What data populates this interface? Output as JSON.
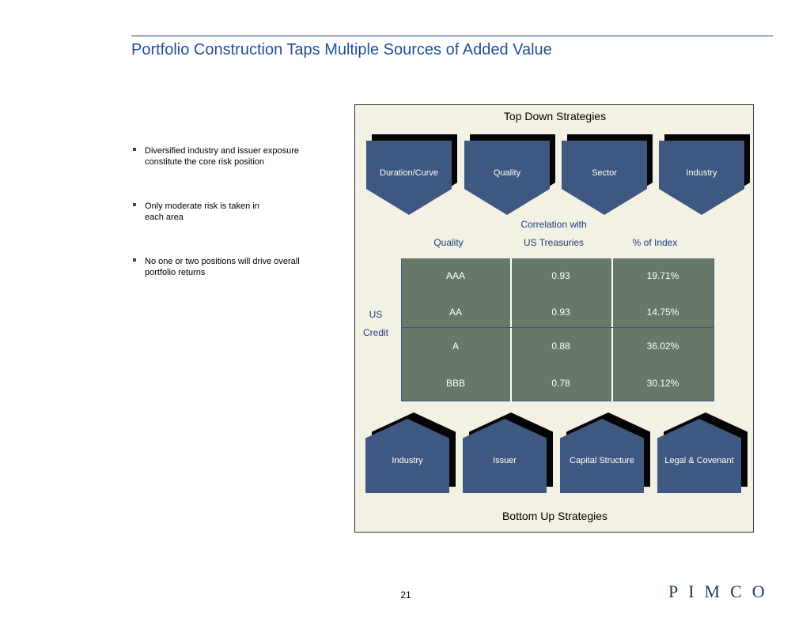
{
  "title": "Portfolio Construction Taps Multiple Sources of Added Value",
  "bullets": [
    {
      "lines": [
        "Diversified industry and issuer exposure",
        "constitute the core risk position"
      ]
    },
    {
      "lines": [
        "Only moderate risk is taken in",
        "each area"
      ]
    },
    {
      "lines": [
        "No one or two positions will drive overall",
        "portfolio returns"
      ]
    }
  ],
  "panel": {
    "top_heading": "Top Down Strategies",
    "bottom_heading": "Bottom Up Strategies",
    "top_strategies": [
      "Duration/Curve",
      "Quality",
      "Sector",
      "Industry"
    ],
    "bottom_strategies": [
      "Industry",
      "Issuer",
      "Capital Structure",
      "Legal & Covenant"
    ]
  },
  "table": {
    "headers": {
      "quality": "Quality",
      "correlation_line1": "Correlation with",
      "correlation_line2": "US Treasuries",
      "pct": "% of Index"
    },
    "row_label_line1": "US",
    "row_label_line2": "Credit",
    "rows": [
      {
        "quality": "AAA",
        "correlation": "0.93",
        "pct": "19.71%"
      },
      {
        "quality": "AA",
        "correlation": "0.93",
        "pct": "14.75%"
      },
      {
        "quality": "A",
        "correlation": "0.88",
        "pct": "36.02%"
      },
      {
        "quality": "BBB",
        "correlation": "0.78",
        "pct": "30.12%"
      }
    ]
  },
  "footer": {
    "page_number": "21",
    "logo_text": "PIMCO"
  },
  "colors": {
    "title": "#1f4e9a",
    "shape_fill": "#3f5881",
    "shape_shadow": "#050505",
    "table_fill": "#677868",
    "panel_background": "#f3f0e4"
  }
}
